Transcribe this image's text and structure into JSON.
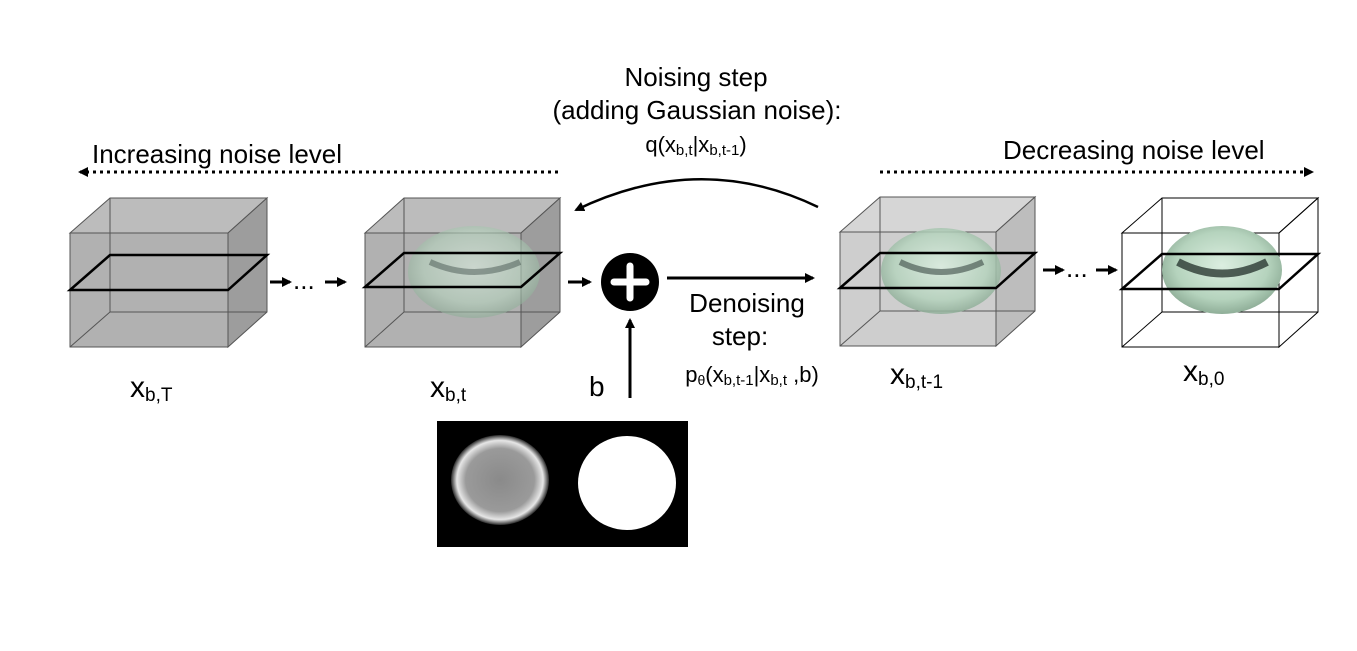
{
  "top_left_label": "Increasing noise level",
  "top_right_label": "Decreasing noise level",
  "noising": {
    "line1": "Noising step",
    "line2": "(adding Gaussian noise):",
    "formula_prefix": "q(x",
    "formula_sub1": "b,t",
    "formula_mid": "|x",
    "formula_sub2": "b,t-1",
    "formula_suffix": ")"
  },
  "denoising": {
    "line1": "Denoising",
    "line2": "step:",
    "formula_p": "p",
    "formula_theta": "θ",
    "formula_open": "(x",
    "formula_sub1": "b,t-1",
    "formula_mid": "|x",
    "formula_sub2": "b,t",
    "formula_suffix": " ,b)"
  },
  "condition_label": "b",
  "ellipsis": "...",
  "plus_symbol": "+",
  "cubes": [
    {
      "base": "x",
      "sub": "b,T"
    },
    {
      "base": "x",
      "sub": "b,t"
    },
    {
      "base": "x",
      "sub": "b,t-1"
    },
    {
      "base": "x",
      "sub": "b,0"
    }
  ],
  "colors": {
    "cube_fill": "#a9a9a9",
    "cube_fill_light": "#c4c4c4",
    "torus": "#b7d6bf",
    "torus_dark": "#3a4a44"
  }
}
